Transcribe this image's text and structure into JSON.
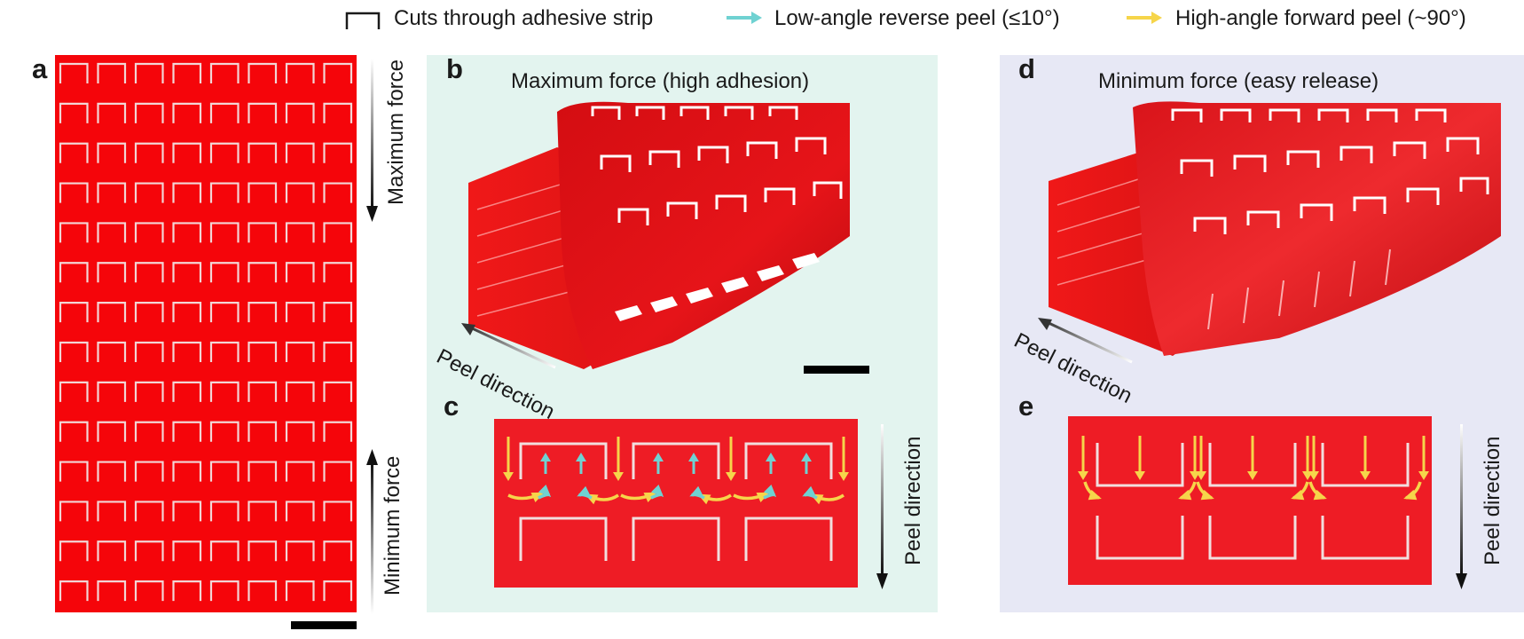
{
  "legend": {
    "cuts": "Cuts through adhesive strip",
    "low_angle": "Low-angle reverse peel (≤10°)",
    "high_angle": "High-angle forward peel (~90°)"
  },
  "panels": {
    "a": {
      "label": "a",
      "top_arrow_text": "Maximum force",
      "bottom_arrow_text": "Minimum force"
    },
    "b": {
      "label": "b",
      "title": "Maximum force (high adhesion)",
      "peel_text": "Peel direction"
    },
    "c": {
      "label": "c",
      "side_text": "Peel direction"
    },
    "d": {
      "label": "d",
      "title": "Minimum force (easy release)",
      "peel_text": "Peel direction"
    },
    "e": {
      "label": "e",
      "side_text": "Peel direction"
    }
  },
  "colors": {
    "strip_red": "#f5050a",
    "diagram_red": "#ee1c25",
    "cyan": "#6fd2d2",
    "yellow": "#f6d54a",
    "panel_b_bg": "#e3f4ef",
    "panel_d_bg": "#e7e8f5"
  }
}
